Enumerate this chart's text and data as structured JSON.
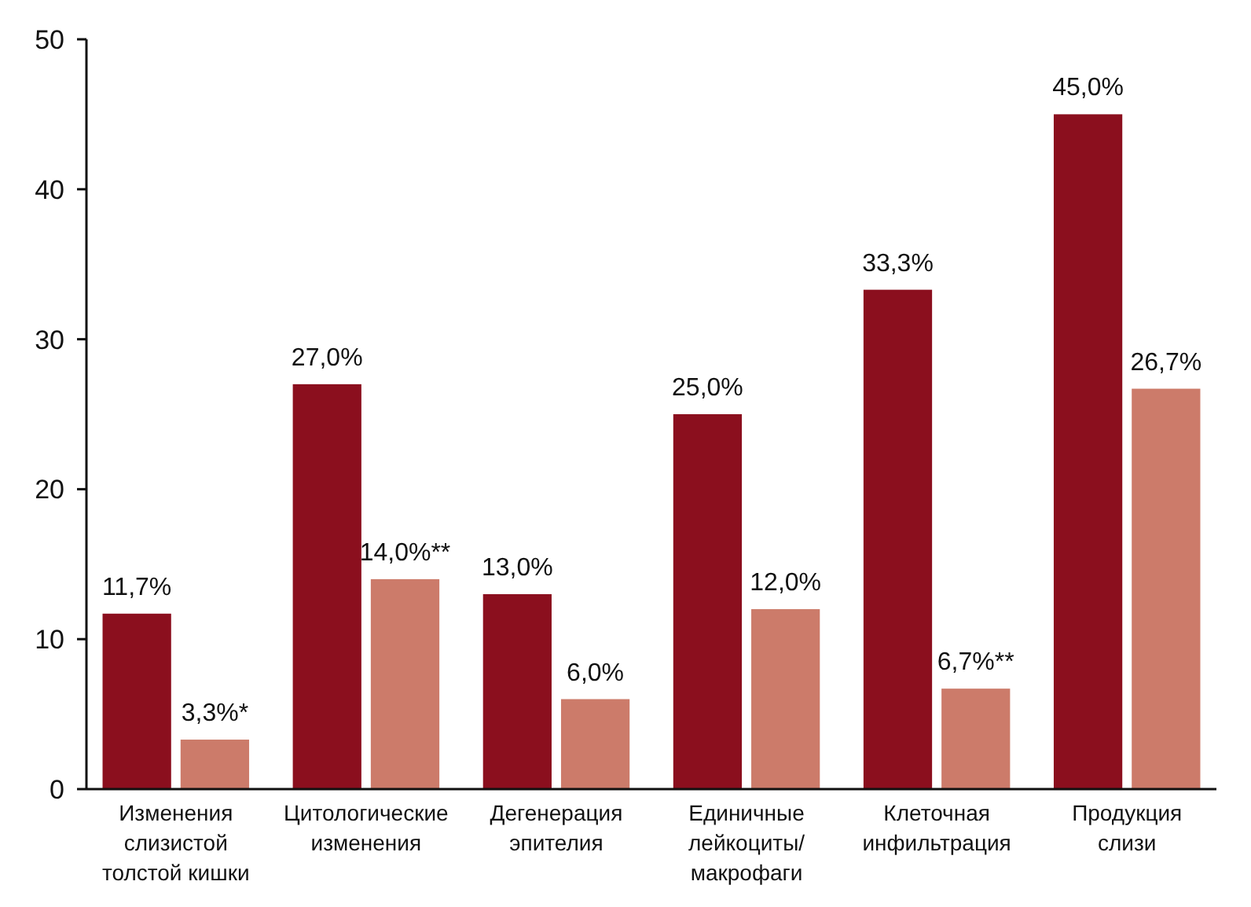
{
  "chart_data": {
    "type": "bar",
    "categories": [
      "Изменения\nслизистой\nтолстой кишки",
      "Цитологические\nизменения",
      "Дегенерация\nэпителия",
      "Единичные\nлейкоциты/\nмакрофаги",
      "Клеточная\nинфильтрация",
      "Продукция\nслизи"
    ],
    "series": [
      {
        "color": "#8b0f1e",
        "values": [
          11.7,
          27.0,
          13.0,
          25.0,
          33.3,
          45.0
        ],
        "value_labels": [
          "11,7%",
          "27,0%",
          "13,0%",
          "25,0%",
          "33,3%",
          "45,0%"
        ]
      },
      {
        "color": "#cc7b6a",
        "values": [
          3.3,
          14.0,
          6.0,
          12.0,
          6.7,
          26.7
        ],
        "value_labels": [
          "3,3%*",
          "14,0%**",
          "6,0%",
          "12,0%",
          "6,7%**",
          "26,7%"
        ]
      }
    ],
    "ylim": [
      0,
      50
    ],
    "yticks": [
      0,
      10,
      20,
      30,
      40,
      50
    ],
    "grid": false
  }
}
